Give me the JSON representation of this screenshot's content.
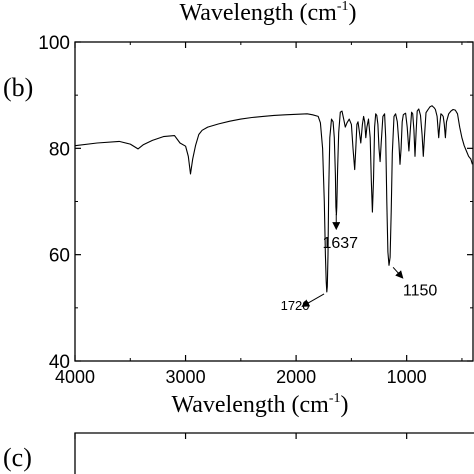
{
  "chart_data": {
    "type": "line",
    "panel_label_top": "(b)",
    "panel_label_bottom": "(c)",
    "top_cropped_xlabel": "Wavelength (cm",
    "xlabel": "Wavelength (cm",
    "xlabel_sup": "-1",
    "xlabel_close": ")",
    "ylabel": "",
    "xlim": [
      4000,
      400
    ],
    "ylim": [
      40,
      100
    ],
    "x_reversed": true,
    "x_ticks": [
      4000,
      3000,
      2000,
      1000
    ],
    "x_tick_labels": [
      "4000",
      "3000",
      "2000",
      "1000"
    ],
    "y_ticks": [
      40,
      60,
      80,
      100
    ],
    "y_tick_labels": [
      "40",
      "60",
      "80",
      "100"
    ],
    "grid": false,
    "annotations": [
      {
        "text": "1720",
        "x": 1720,
        "y": 53
      },
      {
        "text": "1637",
        "x": 1637,
        "y": 68
      },
      {
        "text": "1150",
        "x": 1150,
        "y": 58
      }
    ],
    "series": [
      {
        "x": [
          4000,
          3800,
          3600,
          3500,
          3430,
          3380,
          3300,
          3200,
          3100,
          3050,
          3000,
          2975,
          2955,
          2935,
          2910,
          2880,
          2850,
          2800,
          2700,
          2600,
          2500,
          2400,
          2300,
          2200,
          2100,
          2000,
          1900,
          1850,
          1800,
          1780,
          1760,
          1745,
          1735,
          1728,
          1722,
          1718,
          1712,
          1705,
          1695,
          1680,
          1665,
          1655,
          1645,
          1640,
          1636,
          1632,
          1625,
          1615,
          1600,
          1585,
          1570,
          1555,
          1540,
          1520,
          1500,
          1485,
          1470,
          1460,
          1450,
          1440,
          1430,
          1415,
          1400,
          1390,
          1380,
          1370,
          1360,
          1345,
          1330,
          1320,
          1310,
          1300,
          1290,
          1280,
          1270,
          1260,
          1250,
          1240,
          1230,
          1215,
          1200,
          1190,
          1180,
          1170,
          1160,
          1150,
          1140,
          1130,
          1115,
          1100,
          1085,
          1070,
          1060,
          1050,
          1040,
          1030,
          1020,
          1010,
          995,
          980,
          965,
          955,
          945,
          935,
          925,
          915,
          905,
          890,
          875,
          860,
          850,
          840,
          825,
          810,
          800,
          790,
          780,
          770,
          760,
          750,
          740,
          725,
          710,
          700,
          690,
          680,
          670,
          660,
          650,
          640,
          620,
          600,
          580,
          560,
          540,
          520,
          500,
          480,
          460,
          440,
          420,
          405
        ],
        "y": [
          80.5,
          81.0,
          81.3,
          80.8,
          79.9,
          80.7,
          81.5,
          82.2,
          82.4,
          81.0,
          80.4,
          78.5,
          75.2,
          78.0,
          80.5,
          82.6,
          83.4,
          84.0,
          84.6,
          85.1,
          85.5,
          85.8,
          86.0,
          86.2,
          86.3,
          86.4,
          86.5,
          86.3,
          86.0,
          84.8,
          80.0,
          70.0,
          60.0,
          55.0,
          53.0,
          54.0,
          60.0,
          72.0,
          82.0,
          85.5,
          85.0,
          82.0,
          75.0,
          69.0,
          67.5,
          69.0,
          76.0,
          83.0,
          86.8,
          87.0,
          85.5,
          84.0,
          84.8,
          85.5,
          84.5,
          80.0,
          76.0,
          80.0,
          84.5,
          85.0,
          83.5,
          81.0,
          84.5,
          86.0,
          85.0,
          82.0,
          84.0,
          85.5,
          82.0,
          74.0,
          68.0,
          74.0,
          84.0,
          86.5,
          86.2,
          84.5,
          80.0,
          77.5,
          81.0,
          86.0,
          86.5,
          82.0,
          70.0,
          60.5,
          58.0,
          59.5,
          68.0,
          79.0,
          86.0,
          86.5,
          85.0,
          81.0,
          77.0,
          80.0,
          85.0,
          86.3,
          86.5,
          86.6,
          84.0,
          79.5,
          84.0,
          86.8,
          86.5,
          83.5,
          78.5,
          83.0,
          87.0,
          87.4,
          86.2,
          82.5,
          78.5,
          82.0,
          86.7,
          87.2,
          87.5,
          87.8,
          87.9,
          88.0,
          87.8,
          87.6,
          87.3,
          86.0,
          82.0,
          84.5,
          86.5,
          86.3,
          86.0,
          84.5,
          82.0,
          85.0,
          86.5,
          87.0,
          87.3,
          87.2,
          86.5,
          84.0,
          82.0,
          80.5,
          79.5,
          78.5,
          78.0,
          77.0
        ]
      }
    ]
  }
}
